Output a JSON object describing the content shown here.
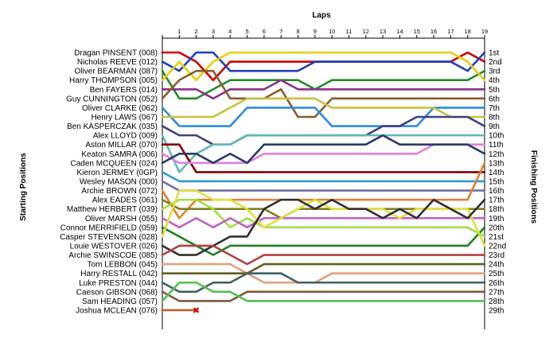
{
  "chart_data": {
    "type": "line",
    "title": "",
    "xlabel": "Laps",
    "ylabel_left": "Starting Positions",
    "ylabel_right": "Finishing Positions",
    "x_ticks": [
      1,
      2,
      3,
      4,
      5,
      6,
      7,
      8,
      9,
      10,
      11,
      12,
      13,
      14,
      15,
      16,
      17,
      18,
      19
    ],
    "xlim": [
      0,
      19
    ],
    "finishing_labels": [
      "1st",
      "2nd",
      "3rd",
      "4th",
      "5th",
      "6th",
      "7th",
      "8th",
      "9th",
      "10th",
      "11th",
      "12th",
      "13th",
      "14th",
      "15th",
      "16th",
      "17th",
      "18th",
      "19th",
      "20th",
      "21st",
      "22nd",
      "23rd",
      "24th",
      "25th",
      "26th",
      "27th",
      "28th",
      "29th"
    ],
    "retired_marker": "✖",
    "series": [
      {
        "name": "Dragan PINSENT (008)",
        "color": "#cc0000",
        "positions": [
          1,
          1,
          2,
          4,
          2,
          2,
          2,
          2,
          2,
          2,
          2,
          2,
          2,
          2,
          2,
          2,
          2,
          2,
          1,
          2
        ]
      },
      {
        "name": "Nicholas REEVE (012)",
        "color": "#1f3fbf",
        "positions": [
          2,
          3,
          1,
          1,
          3,
          3,
          3,
          3,
          3,
          2,
          2,
          2,
          2,
          2,
          2,
          2,
          2,
          2,
          3,
          1
        ]
      },
      {
        "name": "Oliver BEARMAN (087)",
        "color": "#228b22",
        "positions": [
          3,
          6,
          6,
          5,
          4,
          4,
          4,
          4,
          4,
          5,
          4,
          4,
          4,
          4,
          4,
          4,
          4,
          4,
          4,
          3
        ]
      },
      {
        "name": "Harry THOMPSON (005)",
        "color": "#e6d000",
        "positions": [
          4,
          2,
          4,
          2,
          1,
          1,
          1,
          1,
          1,
          1,
          1,
          1,
          1,
          1,
          1,
          1,
          1,
          1,
          2,
          4
        ]
      },
      {
        "name": "Ben FAYERS (014)",
        "color": "#8b2e8b",
        "positions": [
          5,
          5,
          5,
          6,
          5,
          5,
          5,
          4,
          5,
          5,
          5,
          5,
          5,
          5,
          5,
          5,
          5,
          5,
          5,
          5
        ]
      },
      {
        "name": "Guy CUNNINGTON (052)",
        "color": "#8b5a2b",
        "positions": [
          6,
          4,
          3,
          3,
          6,
          6,
          6,
          5,
          8,
          8,
          6,
          6,
          6,
          6,
          6,
          6,
          6,
          6,
          6,
          6
        ]
      },
      {
        "name": "Oliver CLARKE (062)",
        "color": "#2e8bdc",
        "positions": [
          7,
          9,
          9,
          9,
          9,
          7,
          7,
          7,
          7,
          7,
          9,
          9,
          9,
          9,
          9,
          9,
          7,
          7,
          7,
          7
        ]
      },
      {
        "name": "Henry LAWS (067)",
        "color": "#c8c040",
        "positions": [
          8,
          8,
          8,
          8,
          7,
          6,
          6,
          6,
          6,
          6,
          7,
          7,
          7,
          7,
          7,
          7,
          7,
          8,
          8,
          8
        ]
      },
      {
        "name": "Ben KASPERCZAK (035)",
        "color": "#404080",
        "positions": [
          9,
          10,
          10,
          11,
          11,
          10,
          10,
          10,
          10,
          10,
          10,
          10,
          10,
          9,
          9,
          8,
          8,
          8,
          8,
          9
        ]
      },
      {
        "name": "Alex LLOYD (009)",
        "color": "#60b8b0",
        "positions": [
          10,
          14,
          12,
          11,
          11,
          10,
          10,
          10,
          10,
          10,
          10,
          10,
          10,
          10,
          10,
          10,
          10,
          10,
          10,
          10
        ]
      },
      {
        "name": "Aston MILLAR (070)",
        "color": "#800000",
        "positions": [
          11,
          11,
          14,
          14,
          14,
          14,
          14,
          14,
          14,
          14,
          14,
          14,
          14,
          14,
          14,
          14,
          14,
          14,
          14,
          14
        ]
      },
      {
        "name": "Keaton SAMRA (006)",
        "color": "#e080e0",
        "positions": [
          12,
          13,
          13,
          13,
          13,
          13,
          12,
          12,
          12,
          12,
          12,
          12,
          12,
          12,
          12,
          12,
          11,
          11,
          11,
          11
        ]
      },
      {
        "name": "Caden MCQUEEN (024)",
        "color": "#2a3a6a",
        "positions": [
          13,
          12,
          12,
          13,
          12,
          13,
          11,
          11,
          11,
          11,
          11,
          11,
          11,
          10,
          11,
          11,
          11,
          11,
          11,
          12
        ]
      },
      {
        "name": "Kieron JERMEY (0GP)",
        "color": "#2e9bd0",
        "positions": [
          14,
          15,
          15,
          15,
          15,
          15,
          15,
          15,
          15,
          15,
          15,
          15,
          15,
          15,
          15,
          15,
          15,
          15,
          15,
          15
        ]
      },
      {
        "name": "Wesley MASON (000)",
        "color": "#7070a0",
        "positions": [
          15,
          16,
          16,
          16,
          16,
          16,
          16,
          16,
          16,
          16,
          16,
          16,
          16,
          16,
          16,
          16,
          16,
          16,
          16,
          16
        ]
      },
      {
        "name": "Archie BROWN (072)",
        "color": "#e08030",
        "positions": [
          16,
          19,
          17,
          17,
          17,
          17,
          17,
          17,
          17,
          17,
          17,
          17,
          17,
          17,
          17,
          17,
          17,
          17,
          17,
          13
        ]
      },
      {
        "name": "Alex EADES (061)",
        "color": "#808020",
        "positions": [
          17,
          18,
          18,
          18,
          18,
          18,
          18,
          19,
          18,
          18,
          18,
          18,
          18,
          18,
          18,
          18,
          18,
          18,
          18,
          18
        ]
      },
      {
        "name": "Matthew HERBERT (039)",
        "color": "#a0e040",
        "positions": [
          18,
          17,
          17,
          18,
          20,
          19,
          20,
          20,
          20,
          20,
          20,
          20,
          20,
          20,
          20,
          20,
          20,
          20,
          20,
          21
        ]
      },
      {
        "name": "Oliver MARSH (055)",
        "color": "#c060c0",
        "positions": [
          19,
          20,
          19,
          20,
          19,
          20,
          19,
          19,
          19,
          19,
          19,
          19,
          19,
          19,
          19,
          19,
          19,
          19,
          19,
          19
        ]
      },
      {
        "name": "Connor MERRIFIELD (059)",
        "color": "#208020",
        "positions": [
          20,
          21,
          22,
          23,
          22,
          22,
          22,
          22,
          22,
          22,
          22,
          22,
          22,
          22,
          22,
          22,
          22,
          22,
          22,
          20
        ]
      },
      {
        "name": "Casper STEVENSON (028)",
        "color": "#e0e040",
        "positions": [
          21,
          16,
          16,
          17,
          17,
          18,
          20,
          19,
          18,
          17,
          18,
          18,
          18,
          18,
          19,
          18,
          18,
          18,
          18,
          22
        ]
      },
      {
        "name": "Louie WESTOVER (026)",
        "color": "#303030",
        "positions": [
          22,
          23,
          23,
          22,
          21,
          21,
          18,
          17,
          17,
          18,
          17,
          18,
          18,
          19,
          18,
          19,
          17,
          18,
          19,
          17
        ]
      },
      {
        "name": "Archie SWINSCOE (085)",
        "color": "#b04040",
        "positions": [
          23,
          22,
          22,
          22,
          23,
          24,
          23,
          23,
          23,
          23,
          23,
          23,
          23,
          23,
          23,
          23,
          23,
          23,
          23,
          23
        ]
      },
      {
        "name": "Tom LEBBON (045)",
        "color": "#e0a080",
        "positions": [
          24,
          24,
          24,
          24,
          24,
          25,
          26,
          26,
          26,
          26,
          25,
          25,
          25,
          25,
          25,
          25,
          25,
          25,
          25,
          25
        ]
      },
      {
        "name": "Harry RESTALL (042)",
        "color": "#606020",
        "positions": [
          25,
          25,
          25,
          25,
          25,
          25,
          24,
          24,
          24,
          24,
          24,
          24,
          24,
          24,
          24,
          24,
          24,
          24,
          24,
          24
        ]
      },
      {
        "name": "Luke PRESTON (044)",
        "color": "#406060",
        "positions": [
          26,
          27,
          27,
          26,
          26,
          25,
          25,
          25,
          26,
          26,
          26,
          26,
          26,
          26,
          26,
          26,
          26,
          26,
          26,
          26
        ]
      },
      {
        "name": "Caeson GIBSON (068)",
        "color": "#7a5a3a",
        "positions": [
          27,
          28,
          28,
          28,
          28,
          27,
          27,
          27,
          27,
          27,
          27,
          27,
          27,
          27,
          27,
          27,
          27,
          27,
          27,
          27
        ]
      },
      {
        "name": "Sam HEADING (057)",
        "color": "#50c050",
        "positions": [
          28,
          26,
          26,
          27,
          27,
          28,
          28,
          28,
          28,
          28,
          28,
          28,
          28,
          28,
          28,
          28,
          28,
          28,
          28,
          28
        ]
      },
      {
        "name": "Joshua MCLEAN (076)",
        "color": "#c06030",
        "positions": [
          29,
          29,
          29
        ],
        "retired": true
      }
    ]
  }
}
